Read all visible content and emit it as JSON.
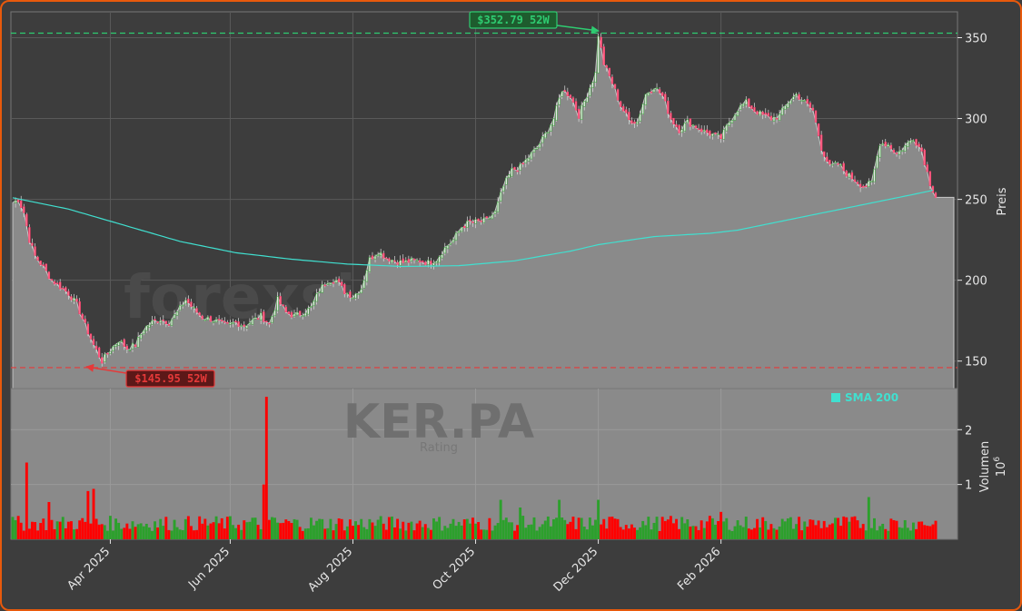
{
  "chart_data": {
    "type": "candlestick",
    "ticker": "KER.PA",
    "watermark": "forexsignale.trade",
    "watermark_sub": "Rating",
    "price_axis_label": "Preis",
    "volume_axis_label": "Volumen",
    "volume_multiplier_label": "10",
    "volume_multiplier_exp": "6",
    "legend_sma": "SMA 200",
    "x_ticks": [
      "Apr 2025",
      "Jun 2025",
      "Aug 2025",
      "Oct 2025",
      "Dec 2025",
      "Feb 2026"
    ],
    "y_ticks": [
      "150",
      "200",
      "250",
      "300",
      "350"
    ],
    "vol_ticks": [
      "1",
      "2"
    ],
    "ylim": [
      133,
      366
    ],
    "vol_ylim": [
      0,
      2.75
    ],
    "high_52w": {
      "value": 352.79,
      "label": "$352.79 52W"
    },
    "low_52w": {
      "value": 145.95,
      "label": "$145.95 52W"
    },
    "colors": {
      "up": "#2ca02c",
      "down": "#ff0000",
      "sma": "#40e0d0",
      "high": "#2ecc71",
      "low": "#e63939",
      "area": "#8a8a8a"
    },
    "price_anchors": [
      [
        0,
        248
      ],
      [
        2,
        250
      ],
      [
        4,
        242
      ],
      [
        6,
        225
      ],
      [
        8,
        215
      ],
      [
        11,
        208
      ],
      [
        14,
        200
      ],
      [
        17,
        196
      ],
      [
        20,
        192
      ],
      [
        23,
        185
      ],
      [
        26,
        172
      ],
      [
        29,
        160
      ],
      [
        32,
        150
      ],
      [
        35,
        157
      ],
      [
        38,
        163
      ],
      [
        41,
        158
      ],
      [
        44,
        160
      ],
      [
        47,
        170
      ],
      [
        50,
        174
      ],
      [
        53,
        176
      ],
      [
        56,
        174
      ],
      [
        59,
        180
      ],
      [
        62,
        188
      ],
      [
        65,
        182
      ],
      [
        68,
        177
      ],
      [
        71,
        176
      ],
      [
        74,
        174
      ],
      [
        77,
        172
      ],
      [
        80,
        174
      ],
      [
        83,
        172
      ],
      [
        86,
        175
      ],
      [
        89,
        178
      ],
      [
        92,
        173
      ],
      [
        95,
        188
      ],
      [
        98,
        180
      ],
      [
        101,
        178
      ],
      [
        104,
        180
      ],
      [
        107,
        183
      ],
      [
        110,
        194
      ],
      [
        113,
        200
      ],
      [
        116,
        200
      ],
      [
        119,
        193
      ],
      [
        122,
        190
      ],
      [
        125,
        195
      ],
      [
        128,
        213
      ],
      [
        131,
        218
      ],
      [
        134,
        214
      ],
      [
        137,
        212
      ],
      [
        140,
        211
      ],
      [
        143,
        212
      ],
      [
        146,
        212
      ],
      [
        149,
        211
      ],
      [
        152,
        213
      ],
      [
        155,
        220
      ],
      [
        158,
        225
      ],
      [
        161,
        233
      ],
      [
        164,
        236
      ],
      [
        167,
        236
      ],
      [
        170,
        237
      ],
      [
        173,
        242
      ],
      [
        176,
        258
      ],
      [
        179,
        268
      ],
      [
        182,
        270
      ],
      [
        185,
        276
      ],
      [
        188,
        282
      ],
      [
        191,
        290
      ],
      [
        194,
        300
      ],
      [
        197,
        318
      ],
      [
        200,
        314
      ],
      [
        203,
        302
      ],
      [
        206,
        315
      ],
      [
        209,
        328
      ],
      [
        210,
        352
      ],
      [
        212,
        334
      ],
      [
        215,
        322
      ],
      [
        218,
        308
      ],
      [
        221,
        299
      ],
      [
        224,
        298
      ],
      [
        227,
        315
      ],
      [
        230,
        320
      ],
      [
        233,
        314
      ],
      [
        236,
        300
      ],
      [
        239,
        293
      ],
      [
        242,
        298
      ],
      [
        245,
        295
      ],
      [
        248,
        292
      ],
      [
        251,
        290
      ],
      [
        254,
        288
      ],
      [
        257,
        298
      ],
      [
        260,
        306
      ],
      [
        263,
        310
      ],
      [
        266,
        305
      ],
      [
        269,
        302
      ],
      [
        272,
        300
      ],
      [
        275,
        302
      ],
      [
        278,
        310
      ],
      [
        281,
        315
      ],
      [
        284,
        310
      ],
      [
        287,
        305
      ],
      [
        290,
        282
      ],
      [
        293,
        270
      ],
      [
        296,
        272
      ],
      [
        299,
        266
      ],
      [
        302,
        262
      ],
      [
        305,
        258
      ],
      [
        308,
        260
      ],
      [
        311,
        285
      ],
      [
        314,
        284
      ],
      [
        317,
        278
      ],
      [
        320,
        283
      ],
      [
        323,
        288
      ],
      [
        326,
        280
      ],
      [
        329,
        260
      ],
      [
        331,
        252
      ]
    ],
    "sma_anchors": [
      [
        0,
        251
      ],
      [
        20,
        244
      ],
      [
        40,
        234
      ],
      [
        60,
        224
      ],
      [
        80,
        217
      ],
      [
        100,
        213
      ],
      [
        120,
        210
      ],
      [
        140,
        208.5
      ],
      [
        160,
        209
      ],
      [
        180,
        212
      ],
      [
        200,
        218
      ],
      [
        210,
        222
      ],
      [
        230,
        227
      ],
      [
        250,
        229
      ],
      [
        260,
        231
      ],
      [
        280,
        238
      ],
      [
        300,
        245
      ],
      [
        320,
        252
      ],
      [
        331,
        256
      ]
    ],
    "volume_spikes": [
      [
        5,
        1.4
      ],
      [
        91,
        2.6
      ],
      [
        90,
        1.0
      ],
      [
        29,
        0.92
      ],
      [
        27,
        0.88
      ],
      [
        175,
        0.72
      ],
      [
        196,
        0.72
      ],
      [
        210,
        0.72
      ],
      [
        254,
        0.5
      ],
      [
        307,
        0.77
      ],
      [
        13,
        0.68
      ],
      [
        182,
        0.58
      ]
    ],
    "n_bars": 332
  }
}
